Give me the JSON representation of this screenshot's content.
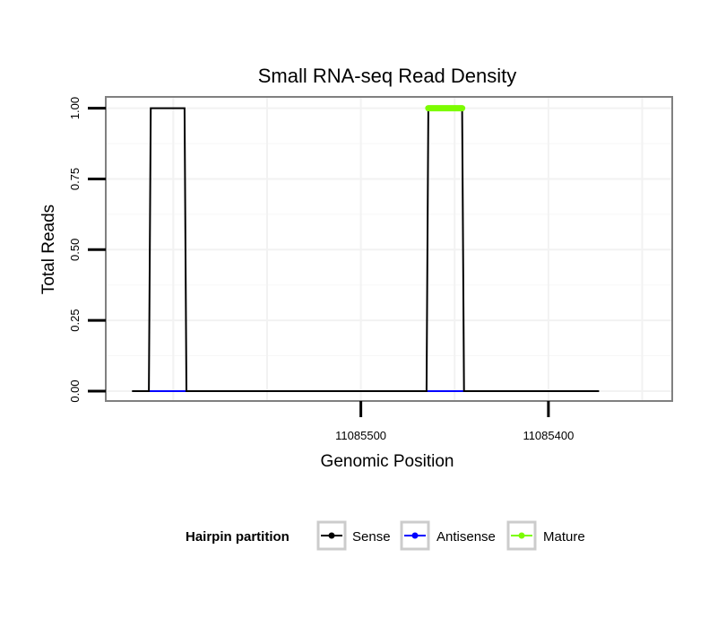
{
  "chart_data": {
    "type": "line",
    "title": "Small RNA-seq Read Density",
    "xlabel": "Genomic Position",
    "ylabel": "Total Reads",
    "x_reversed": true,
    "xlim": [
      11085636,
      11085334
    ],
    "ylim": [
      -0.035,
      1.04
    ],
    "x_ticks": [
      11085500,
      11085400
    ],
    "x_tick_labels": [
      "11085500",
      "11085400"
    ],
    "y_ticks": [
      0,
      0.25,
      0.5,
      0.75,
      1
    ],
    "y_tick_labels": [
      "0.00",
      "0.25",
      "0.50",
      "0.75",
      "1.00"
    ],
    "grid": true,
    "legend_position": "bottom",
    "legend_title": "Hairpin partition",
    "series": [
      {
        "name": "Sense",
        "color": "#000000",
        "x": [
          11085622,
          11085613,
          11085612,
          11085594,
          11085593,
          11085465,
          11085464,
          11085446,
          11085445,
          11085373
        ],
        "y": [
          0,
          0,
          1,
          1,
          0,
          0,
          1,
          1,
          0,
          0
        ]
      },
      {
        "name": "Antisense",
        "color": "#0000ff",
        "x": [
          11085613,
          11085593,
          11085593,
          11085465,
          11085465,
          11085445
        ],
        "y": [
          0,
          0,
          null,
          null,
          0,
          0
        ]
      },
      {
        "name": "Mature",
        "color": "#7cfc00",
        "x": [
          11085464,
          11085446
        ],
        "y": [
          1,
          1
        ]
      }
    ]
  }
}
